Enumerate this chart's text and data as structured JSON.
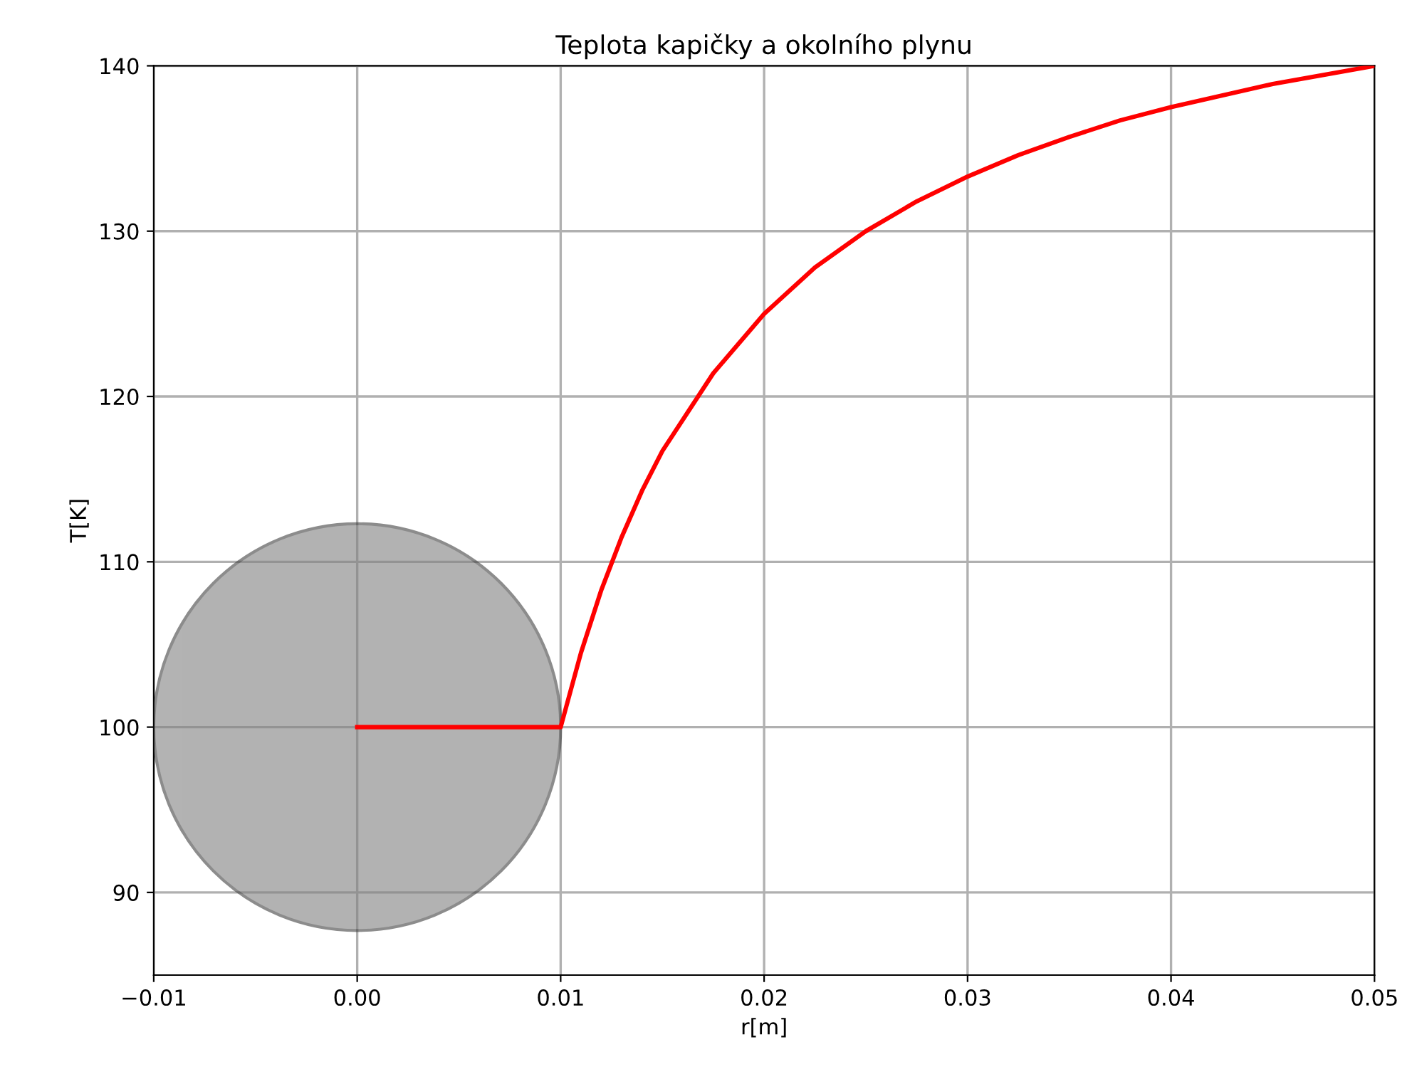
{
  "chart_data": {
    "type": "line",
    "title": "Teplota kapičky a okolního plynu",
    "xlabel": "r[m]",
    "ylabel": "T[K]",
    "x": [
      0,
      0.01,
      0.011,
      0.012,
      0.013,
      0.014,
      0.015,
      0.0175,
      0.02,
      0.0225,
      0.025,
      0.0275,
      0.03,
      0.0325,
      0.035,
      0.0375,
      0.04,
      0.045,
      0.05
    ],
    "series": [
      {
        "color": "#ff0000",
        "values": [
          100,
          100,
          104.5,
          108.3,
          111.5,
          114.3,
          116.7,
          121.4,
          125,
          127.8,
          130,
          131.8,
          133.3,
          134.6,
          135.7,
          136.7,
          137.5,
          138.9,
          140
        ]
      }
    ],
    "xlim": [
      -0.01,
      0.05
    ],
    "xticks": [
      {
        "value": -0.01,
        "label": "−0.01"
      },
      {
        "value": 0,
        "label": "0.00"
      },
      {
        "value": 0.01,
        "label": "0.01"
      },
      {
        "value": 0.02,
        "label": "0.02"
      },
      {
        "value": 0.03,
        "label": "0.03"
      },
      {
        "value": 0.04,
        "label": "0.04"
      },
      {
        "value": 0.05,
        "label": "0.05"
      }
    ],
    "ylim": [
      85,
      140
    ],
    "yticks": [
      90,
      100,
      110,
      120,
      130,
      140
    ],
    "grid": true,
    "line_style": "solid",
    "marker": "none"
  }
}
